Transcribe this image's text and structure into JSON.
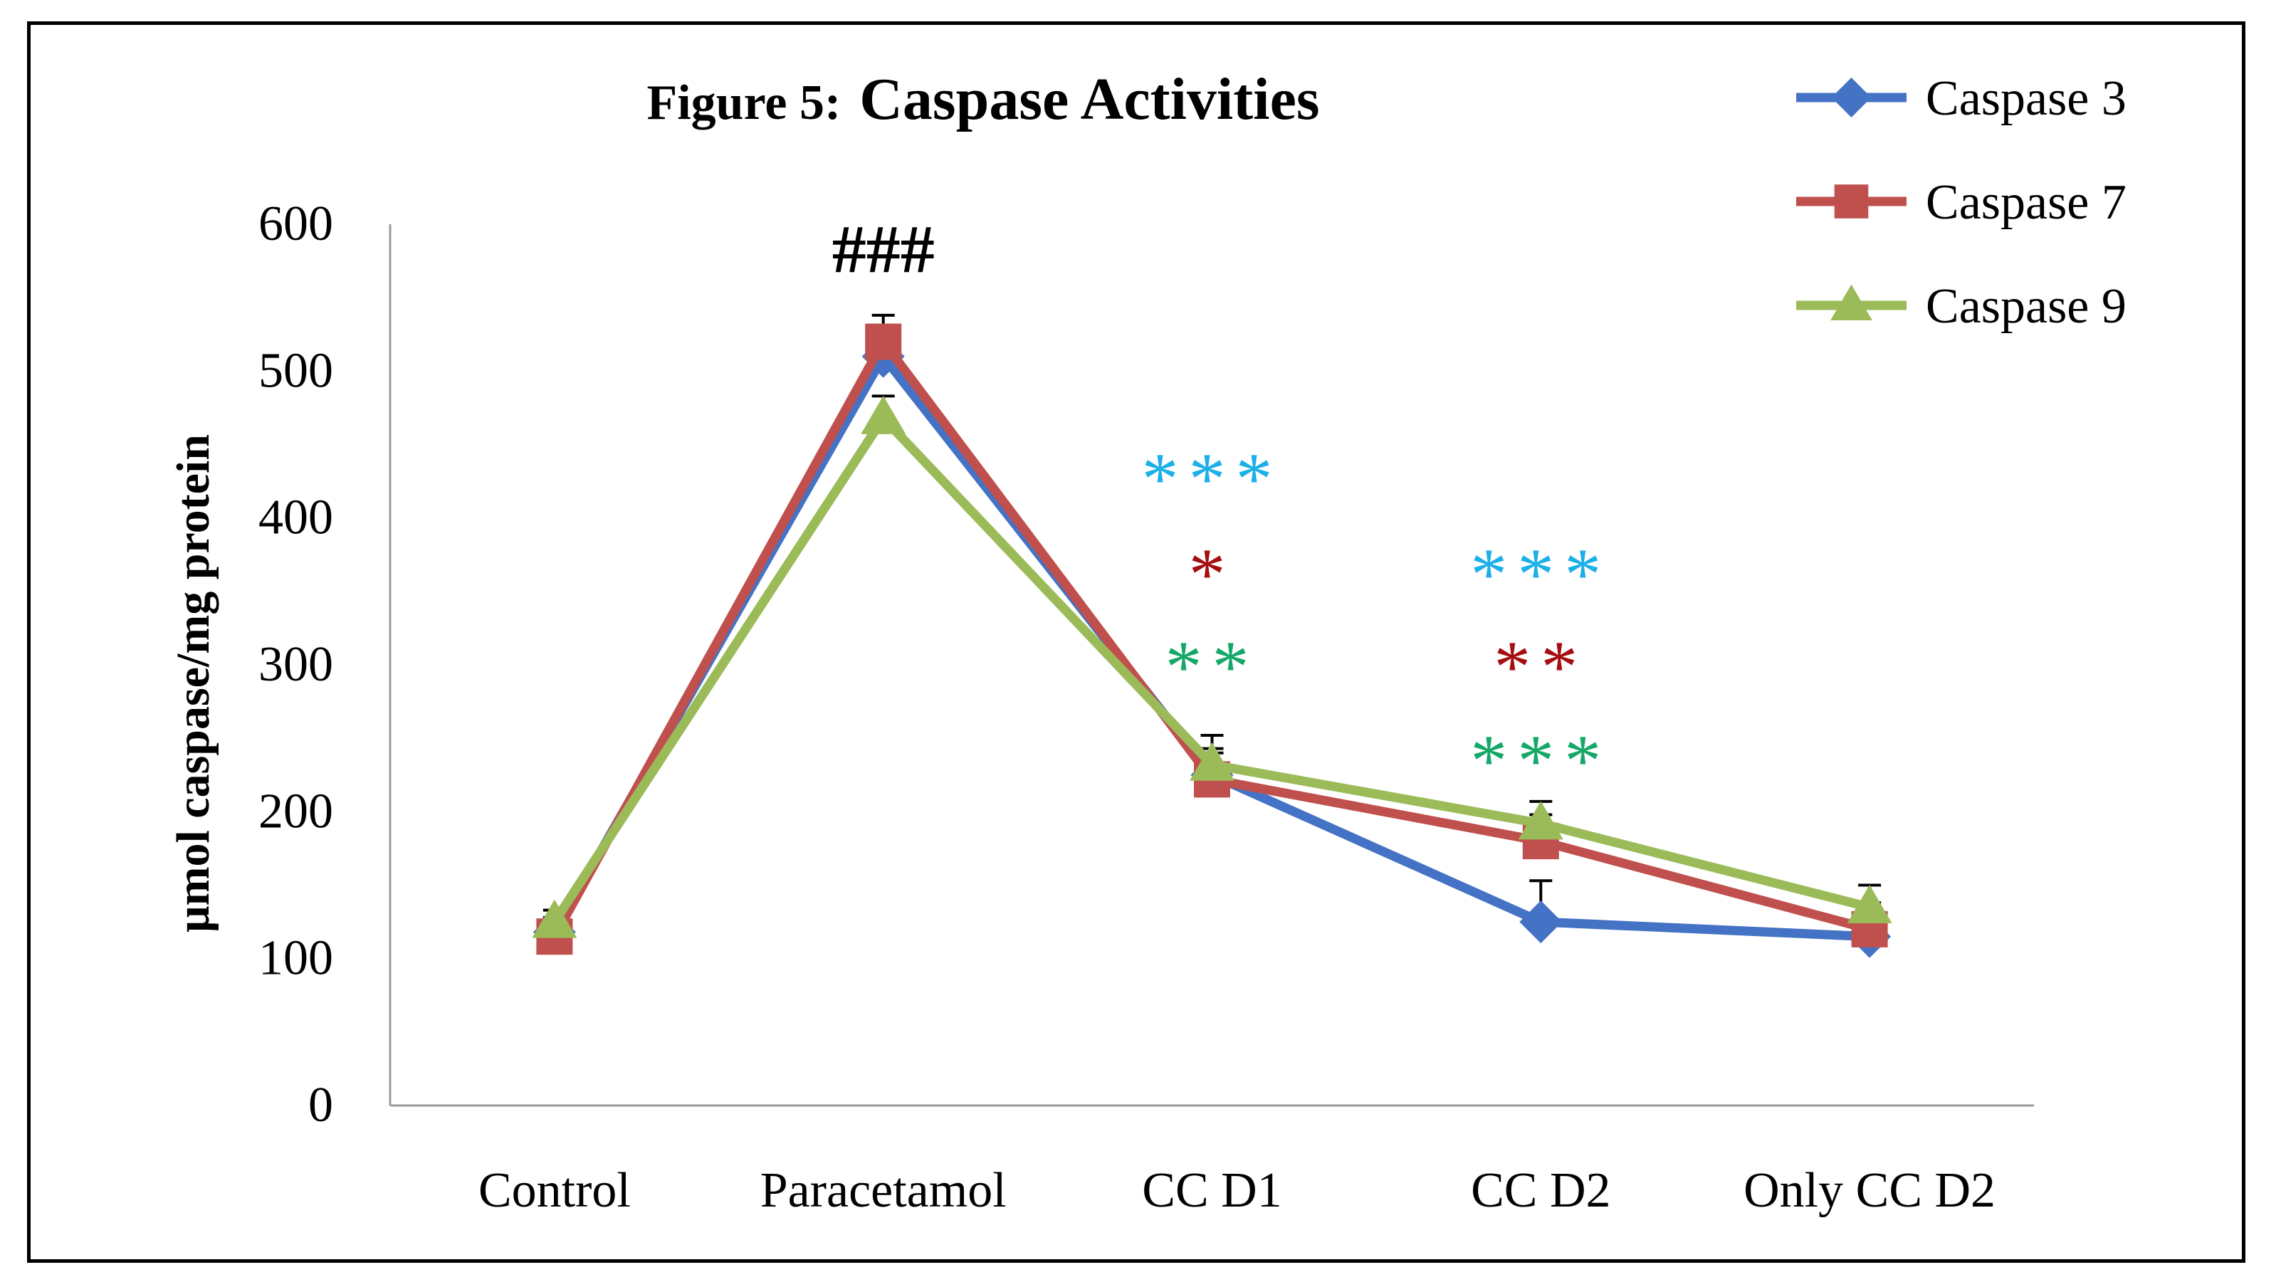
{
  "chart_data": {
    "type": "line",
    "title_prefix": "Figure 5:",
    "title_main": "Caspase Activities",
    "xlabel": "",
    "ylabel": "μmol caspase/mg protein",
    "ylim": [
      0,
      600
    ],
    "yticks": [
      0,
      100,
      200,
      300,
      400,
      500,
      600
    ],
    "categories": [
      "Control",
      "Paracetamol",
      "CC D1",
      "CC D2",
      "Only CC D2"
    ],
    "series": [
      {
        "name": "Caspase 3",
        "color": "#4472C4",
        "marker": "diamond",
        "values": [
          118,
          510,
          225,
          125,
          115
        ],
        "errors": [
          10,
          12,
          18,
          28,
          12
        ]
      },
      {
        "name": "Caspase 7",
        "color": "#C0504D",
        "marker": "square",
        "values": [
          115,
          520,
          222,
          180,
          120
        ],
        "errors": [
          12,
          18,
          18,
          18,
          18
        ]
      },
      {
        "name": "Caspase 9",
        "color": "#9BBB59",
        "marker": "triangle",
        "values": [
          125,
          468,
          232,
          192,
          135
        ],
        "errors": [
          8,
          15,
          20,
          15,
          15
        ]
      }
    ],
    "annotations": [
      {
        "text": "###",
        "category": "Paracetamol",
        "y": 580,
        "color": "#000000"
      },
      {
        "text": "***",
        "category": "CC D1",
        "y": 435,
        "color": "#1CB0E8"
      },
      {
        "text": "*",
        "category": "CC D1",
        "y": 370,
        "color": "#A50E12"
      },
      {
        "text": "**",
        "category": "CC D1",
        "y": 307,
        "color": "#16A868"
      },
      {
        "text": "***",
        "category": "CC D2",
        "y": 370,
        "color": "#1CB0E8"
      },
      {
        "text": "**",
        "category": "CC D2",
        "y": 307,
        "color": "#A50E12"
      },
      {
        "text": "***",
        "category": "CC D2",
        "y": 243,
        "color": "#16A868"
      }
    ],
    "legend_position": "top-right"
  }
}
